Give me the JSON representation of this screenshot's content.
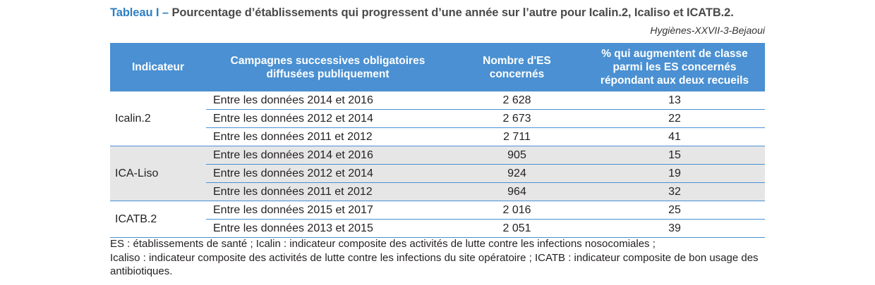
{
  "header": {
    "title_lead": "Tableau I – ",
    "title_rest": "Pourcentage d’établissements qui progressent d’une année sur l’autre pour Icalin.2, Icaliso et ICATB.2.",
    "source": "Hygiènes-XXVII-3-Bejaoui"
  },
  "table": {
    "columns": [
      "Indicateur",
      "Campagnes successives obligatoires diffusées publiquement",
      "Nombre d'ES concernés",
      "% qui augmentent de classe parmi les ES concernés répondant aux deux recueils"
    ],
    "groups": [
      {
        "indicator": "Icalin.2",
        "rows": [
          {
            "campaign": "Entre les données 2014 et 2016",
            "count": "2 628",
            "pct": "13"
          },
          {
            "campaign": "Entre les données 2012 et 2014",
            "count": "2 673",
            "pct": "22"
          },
          {
            "campaign": "Entre les données 2011 et 2012",
            "count": "2 711",
            "pct": "41"
          }
        ]
      },
      {
        "indicator": "ICA-Liso",
        "rows": [
          {
            "campaign": "Entre les données 2014 et 2016",
            "count": "905",
            "pct": "15"
          },
          {
            "campaign": "Entre les données 2012 et 2014",
            "count": "924",
            "pct": "19"
          },
          {
            "campaign": "Entre les données 2011 et 2012",
            "count": "964",
            "pct": "32"
          }
        ]
      },
      {
        "indicator": "ICATB.2",
        "rows": [
          {
            "campaign": "Entre les données 2015 et 2017",
            "count": "2 016",
            "pct": "25"
          },
          {
            "campaign": "Entre les données 2013 et 2015",
            "count": "2 051",
            "pct": "39"
          }
        ]
      }
    ]
  },
  "notes": {
    "line1": "ES : établissements de santé ; Icalin : indicateur composite des activités de lutte contre les infections nosocomiales ;",
    "line2": "Icaliso : indicateur composite des activités de lutte contre les infections du site opératoire ; ICATB : indicateur composite de bon usage des antibiotiques."
  }
}
